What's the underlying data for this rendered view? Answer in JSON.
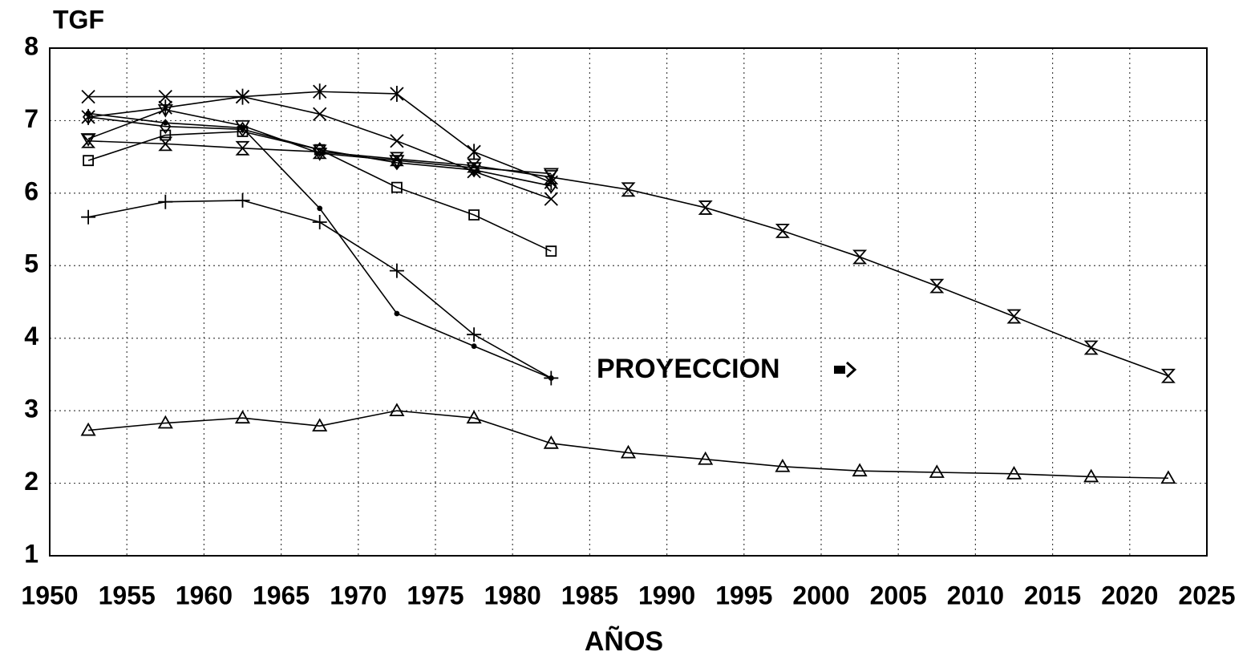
{
  "chart_data": {
    "type": "line",
    "ylabel": "TGF",
    "xlabel": "AÑOS",
    "annotation": "PROYECCION",
    "xlim": [
      1950,
      2025
    ],
    "xticks": [
      1950,
      1955,
      1960,
      1965,
      1970,
      1975,
      1980,
      1985,
      1990,
      1995,
      2000,
      2005,
      2010,
      2015,
      2020,
      2025
    ],
    "ylim": [
      1,
      8
    ],
    "yticks": [
      1,
      2,
      3,
      4,
      5,
      6,
      7,
      8
    ],
    "grid": true,
    "series": [
      {
        "marker": "triangle",
        "color": "#000000",
        "x": [
          1952.5,
          1957.5,
          1962.5,
          1967.5,
          1972.5,
          1977.5,
          1982.5,
          1987.5,
          1992.5,
          1997.5,
          2002.5,
          2007.5,
          2012.5,
          2017.5,
          2022.5
        ],
        "values": [
          2.73,
          2.83,
          2.9,
          2.79,
          3.0,
          2.9,
          2.55,
          2.42,
          2.33,
          2.23,
          2.17,
          2.15,
          2.13,
          2.09,
          2.07
        ]
      },
      {
        "marker": "hourglass",
        "color": "#000000",
        "x": [
          1952.5,
          1957.5,
          1962.5,
          1967.5,
          1972.5,
          1977.5,
          1982.5,
          1987.5,
          1992.5,
          1997.5,
          2002.5,
          2007.5,
          2012.5,
          2017.5,
          2022.5
        ],
        "values": [
          6.72,
          6.68,
          6.62,
          6.57,
          6.47,
          6.38,
          6.22,
          6.05,
          5.8,
          5.48,
          5.12,
          4.72,
          4.3,
          3.87,
          3.48
        ]
      },
      {
        "marker": "plus",
        "color": "#000000",
        "x": [
          1952.5,
          1957.5,
          1962.5,
          1967.5,
          1972.5,
          1977.5,
          1982.5
        ],
        "values": [
          5.67,
          5.88,
          5.9,
          5.6,
          4.93,
          4.05,
          3.45
        ]
      },
      {
        "marker": "dot",
        "color": "#000000",
        "x": [
          1952.5,
          1957.5,
          1962.5,
          1967.5,
          1972.5,
          1977.5,
          1982.5
        ],
        "values": [
          7.1,
          6.97,
          6.9,
          5.79,
          4.34,
          3.89,
          3.45
        ]
      },
      {
        "marker": "square",
        "color": "#000000",
        "x": [
          1952.5,
          1957.5,
          1962.5,
          1967.5,
          1972.5,
          1977.5,
          1982.5
        ],
        "values": [
          6.45,
          6.8,
          6.85,
          6.6,
          6.08,
          5.7,
          5.2
        ]
      },
      {
        "marker": "diamond",
        "color": "#000000",
        "x": [
          1952.5,
          1957.5,
          1962.5,
          1967.5,
          1972.5,
          1977.5,
          1982.5
        ],
        "values": [
          7.05,
          6.92,
          6.88,
          6.6,
          6.42,
          6.32,
          6.1
        ]
      },
      {
        "marker": "cross",
        "color": "#000000",
        "x": [
          1952.5,
          1957.5,
          1962.5,
          1967.5,
          1972.5,
          1977.5,
          1982.5
        ],
        "values": [
          7.33,
          7.33,
          7.33,
          7.09,
          6.72,
          6.3,
          5.92
        ]
      },
      {
        "marker": "asterisk",
        "color": "#000000",
        "x": [
          1952.5,
          1957.5,
          1962.5,
          1967.5,
          1972.5,
          1977.5,
          1982.5
        ],
        "values": [
          7.05,
          7.18,
          7.33,
          7.4,
          7.37,
          6.57,
          6.15
        ]
      },
      {
        "marker": "triangle-down",
        "color": "#000000",
        "x": [
          1952.5,
          1957.5,
          1962.5,
          1967.5,
          1972.5,
          1977.5,
          1982.5
        ],
        "values": [
          6.75,
          7.15,
          6.93,
          6.55,
          6.45,
          6.35,
          6.27
        ]
      }
    ]
  }
}
